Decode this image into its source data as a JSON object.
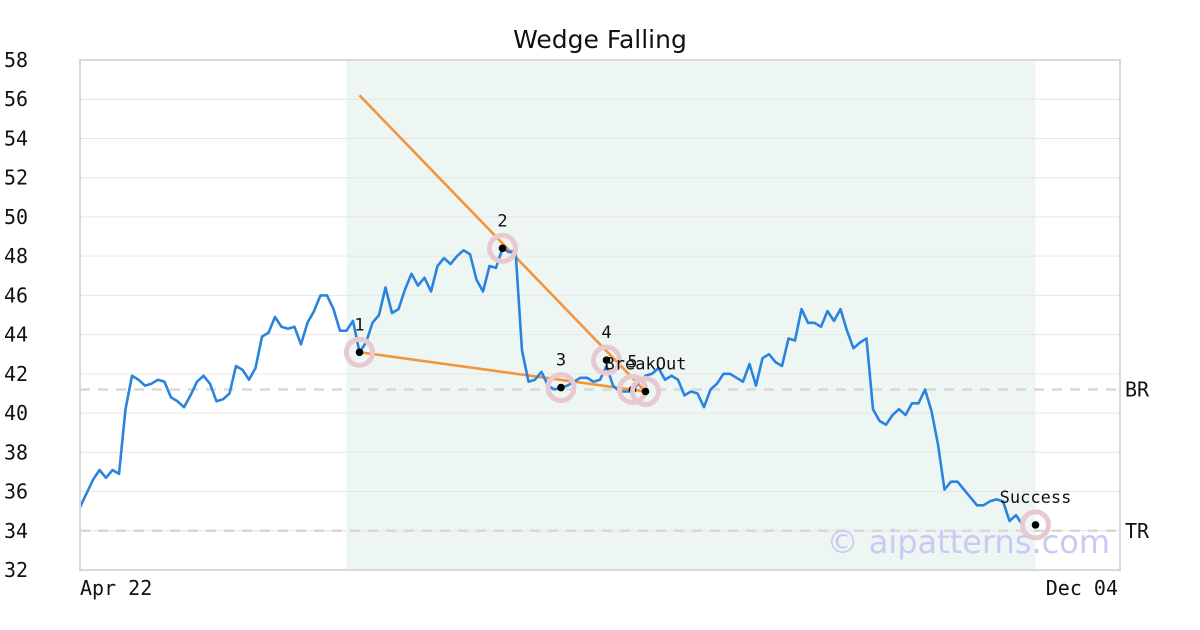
{
  "chart_data": {
    "type": "line",
    "title": "Wedge Falling",
    "ylim": [
      32,
      58
    ],
    "yticks": [
      "32",
      "34",
      "36",
      "38",
      "40",
      "42",
      "44",
      "46",
      "48",
      "50",
      "52",
      "54",
      "56",
      "58"
    ],
    "x_range": [
      0,
      160
    ],
    "xtick_labels": {
      "start": "Apr 22",
      "end": "Dec 04"
    },
    "grid": "horizontal",
    "pattern_window": [
      41,
      147
    ],
    "colors": {
      "price": "#2b83e0",
      "wedge": "#f5953a",
      "shade": "#eef6f3",
      "ref": "#d8d8d8",
      "marker_ring": "#e9c9d0"
    },
    "series": [
      {
        "values": [
          35.2,
          35.9,
          36.6,
          37.1,
          36.7,
          37.1,
          36.9,
          40.2,
          41.9,
          41.7,
          41.4,
          41.5,
          41.7,
          41.6,
          40.8,
          40.6,
          40.3,
          40.9,
          41.6,
          41.9,
          41.5,
          40.6,
          40.7,
          41.0,
          42.4,
          42.2,
          41.7,
          42.3,
          43.9,
          44.1,
          44.9,
          44.4,
          44.3,
          44.4,
          43.5,
          44.6,
          45.2,
          46.0,
          46.0,
          45.3,
          44.2,
          44.2,
          44.7,
          43.1,
          43.6,
          44.6,
          45.0,
          46.4,
          45.1,
          45.3,
          46.3,
          47.1,
          46.5,
          46.9,
          46.2,
          47.5,
          47.9,
          47.6,
          48.0,
          48.3,
          48.1,
          46.8,
          46.2,
          47.5,
          47.4,
          48.4,
          48.2,
          48.3,
          43.2,
          41.6,
          41.7,
          42.1,
          41.4,
          41.2,
          41.3,
          41.4,
          41.6,
          41.8,
          41.8,
          41.6,
          41.7,
          42.4,
          41.4,
          41.1,
          41.1,
          41.1,
          41.6,
          41.9,
          42.0,
          42.3,
          41.7,
          41.9,
          41.7,
          40.9,
          41.1,
          41.0,
          40.3,
          41.2,
          41.5,
          42.0,
          42.0,
          41.8,
          41.6,
          42.5,
          41.4,
          42.8,
          43.0,
          42.6,
          42.4,
          43.8,
          43.7,
          45.3,
          44.6,
          44.6,
          44.4,
          45.2,
          44.7,
          45.3,
          44.2,
          43.3,
          43.6,
          43.8,
          40.2,
          39.6,
          39.4,
          39.9,
          40.2,
          39.9,
          40.5,
          40.5,
          41.2,
          40.1,
          38.4,
          36.1,
          36.5,
          36.5,
          36.1,
          35.7,
          35.3,
          35.3,
          35.5,
          35.6,
          35.5,
          34.5,
          34.8,
          34.3
        ]
      }
    ],
    "wedge_lines": [
      {
        "name": "upper",
        "from": [
          43,
          56.2
        ],
        "to": [
          87,
          41.1
        ]
      },
      {
        "name": "lower",
        "from": [
          43,
          43.1
        ],
        "to": [
          87,
          41.1
        ]
      }
    ],
    "reference_lines": [
      {
        "label": "BR",
        "y": 41.2
      },
      {
        "label": "TR",
        "y": 34.0
      }
    ],
    "markers": [
      {
        "label": "1",
        "x": 43,
        "y": 43.1
      },
      {
        "label": "2",
        "x": 65,
        "y": 48.4
      },
      {
        "label": "3",
        "x": 74,
        "y": 41.3
      },
      {
        "label": "4",
        "x": 81,
        "y": 42.7
      },
      {
        "label": "5",
        "x": 85,
        "y": 41.2
      },
      {
        "label": "BreakOut",
        "x": 87,
        "y": 41.1
      },
      {
        "label": "Success",
        "x": 147,
        "y": 34.3
      }
    ]
  },
  "watermark": "© aipatterns.com"
}
